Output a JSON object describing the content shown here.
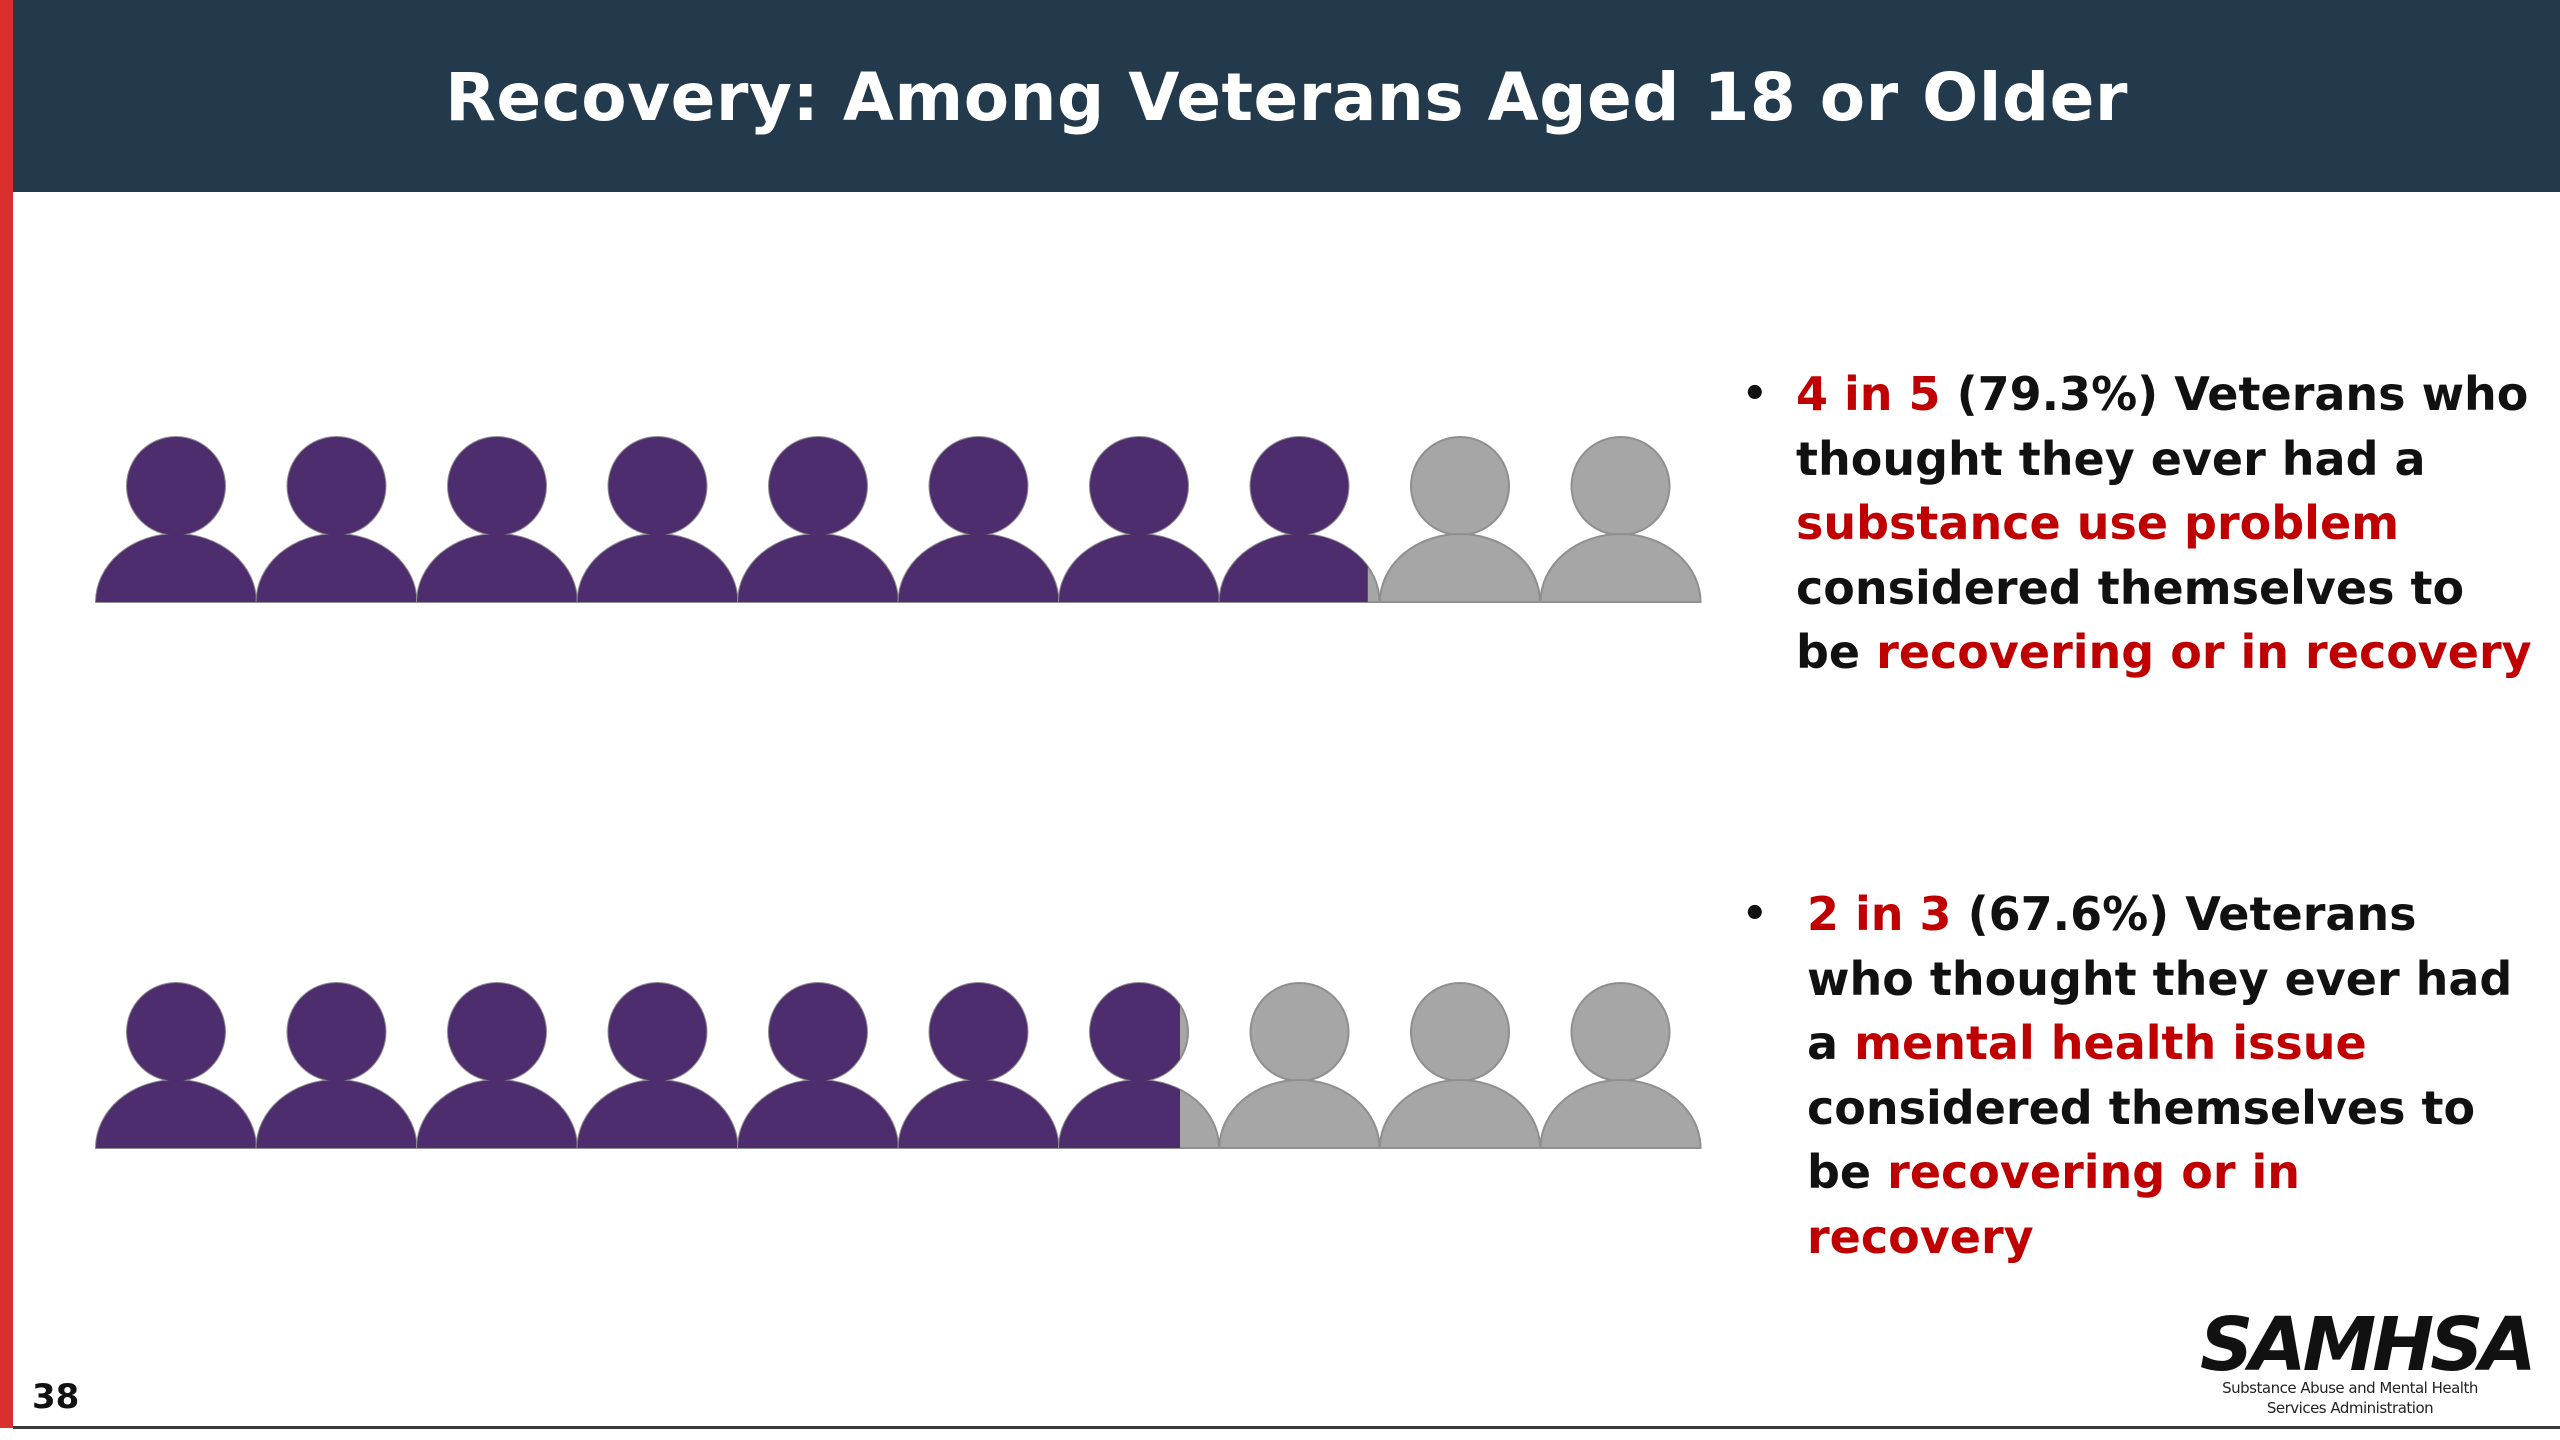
{
  "slide": {
    "title": "Recovery: Among Veterans Aged 18 or Older",
    "page_number": "38"
  },
  "colors": {
    "header_bg": "#233a4d",
    "accent_red": "#c00000",
    "left_bar": "#d9302f",
    "filled_person": "#4e2d6e",
    "empty_person": "#a6a6a6"
  },
  "chart_data": [
    {
      "type": "pictogram",
      "total_icons": 10,
      "filled_icons": 7.93,
      "value_percent": 79.3,
      "filled_color": "#4e2d6e",
      "empty_color": "#a6a6a6"
    },
    {
      "type": "pictogram",
      "total_icons": 10,
      "filled_icons": 6.76,
      "value_percent": 67.6,
      "filled_color": "#4e2d6e",
      "empty_color": "#a6a6a6"
    }
  ],
  "bullets": [
    {
      "lines": [
        [
          {
            "t": "4 in 5",
            "hl": true
          },
          {
            "t": " (79.3%) Veterans who",
            "hl": false
          }
        ],
        [
          {
            "t": "thought they ever had a",
            "hl": false
          }
        ],
        [
          {
            "t": "substance use problem",
            "hl": true
          }
        ],
        [
          {
            "t": "considered themselves to",
            "hl": false
          }
        ],
        [
          {
            "t": "be ",
            "hl": false
          },
          {
            "t": "recovering or in recovery",
            "hl": true
          }
        ]
      ]
    },
    {
      "lines": [
        [
          {
            "t": "2 in 3",
            "hl": true
          },
          {
            "t": " (67.6%) Veterans",
            "hl": false
          }
        ],
        [
          {
            "t": "who thought they ever had",
            "hl": false
          }
        ],
        [
          {
            "t": "a ",
            "hl": false
          },
          {
            "t": "mental health issue",
            "hl": true
          }
        ],
        [
          {
            "t": "considered themselves to",
            "hl": false
          }
        ],
        [
          {
            "t": "be ",
            "hl": false
          },
          {
            "t": "recovering or in",
            "hl": true
          }
        ],
        [
          {
            "t": "recovery",
            "hl": true
          }
        ]
      ]
    }
  ],
  "logo": {
    "name": "SAMHSA",
    "subtitle_line1": "Substance Abuse and Mental Health",
    "subtitle_line2": "Services Administration"
  }
}
